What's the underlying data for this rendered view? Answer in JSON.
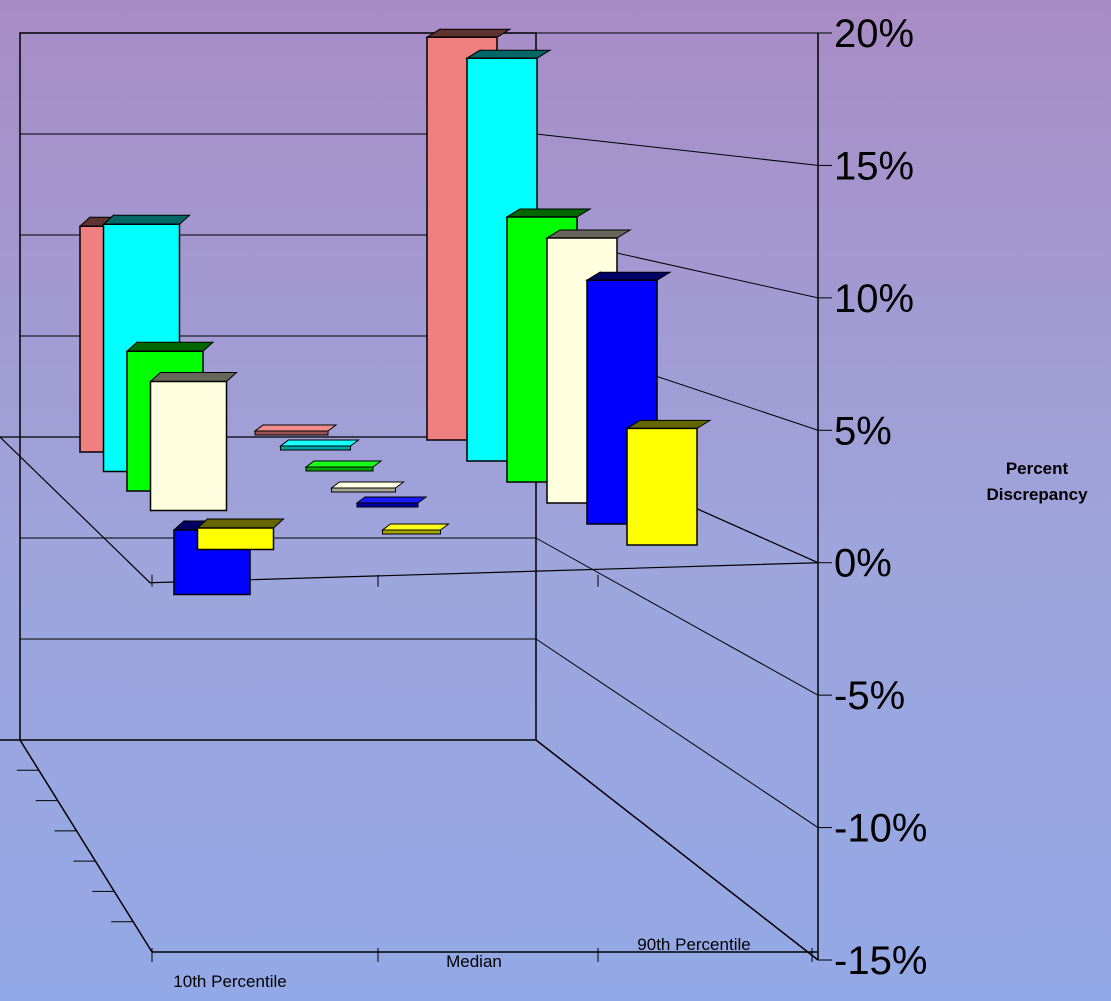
{
  "chart_data": {
    "type": "bar",
    "subtype": "3d-grouped",
    "title": "",
    "xlabel": "",
    "ylabel": "Percent Discrepancy",
    "ylabel_lines": [
      "Percent",
      "Discrepancy"
    ],
    "ylim": [
      -15,
      20
    ],
    "y_ticks": [
      20,
      15,
      10,
      5,
      0,
      -5,
      -10,
      -15
    ],
    "y_tick_labels": [
      "20%",
      "15%",
      "10%",
      "5%",
      "0%",
      "-5%",
      "-10%",
      "-15%"
    ],
    "categories": [
      "10th Percentile",
      "Median",
      "90th Percentile"
    ],
    "grid": true,
    "legend": "none",
    "series": [
      {
        "color": "#f08080",
        "values": [
          10.5,
          0.2,
          19.0
        ]
      },
      {
        "color": "#00ffff",
        "values": [
          11.5,
          0.3,
          19.0
        ]
      },
      {
        "color": "#00ff00",
        "values": [
          6.5,
          0.3,
          12.5
        ]
      },
      {
        "color": "#ffffe0",
        "values": [
          6.0,
          0.3,
          12.5
        ]
      },
      {
        "color": "#0000ff",
        "values": [
          -3.0,
          0.4,
          11.5
        ]
      },
      {
        "color": "#ffff00",
        "values": [
          1.0,
          0.3,
          5.5
        ]
      }
    ]
  }
}
